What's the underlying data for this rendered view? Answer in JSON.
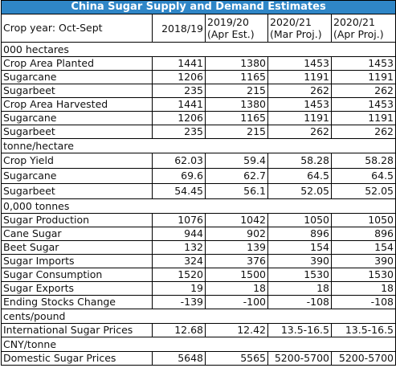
{
  "title": "China Sugar Supply and Demand Estimates",
  "header": {
    "label": "Crop year: Oct-Sept",
    "cols": [
      {
        "line1": "2018/19",
        "line2": ""
      },
      {
        "line1": "2019/20",
        "line2": "(Apr Est.)"
      },
      {
        "line1": "2020/21",
        "line2": "(Mar Proj.)"
      },
      {
        "line1": "2020/21",
        "line2": "(Apr Proj.)"
      }
    ]
  },
  "sections": [
    {
      "unit": "000 hectares",
      "rows": [
        {
          "label": "Crop Area Planted",
          "v": [
            "1441",
            "1380",
            "1453",
            "1453"
          ]
        },
        {
          "label": "Sugarcane",
          "v": [
            "1206",
            "1165",
            "1191",
            "1191"
          ]
        },
        {
          "label": "Sugarbeet",
          "v": [
            "235",
            "215",
            "262",
            "262"
          ]
        },
        {
          "label": "Crop Area Harvested",
          "v": [
            "1441",
            "1380",
            "1453",
            "1453"
          ]
        },
        {
          "label": "Sugarcane",
          "v": [
            "1206",
            "1165",
            "1191",
            "1191"
          ]
        },
        {
          "label": "Sugarbeet",
          "v": [
            "235",
            "215",
            "262",
            "262"
          ]
        }
      ]
    },
    {
      "unit": "tonne/hectare",
      "rows": [
        {
          "label": "Crop Yield",
          "v": [
            "62.03",
            "59.4",
            "58.28",
            "58.28"
          ]
        },
        {
          "label": "Sugarcane",
          "v": [
            "69.6",
            "62.7",
            "64.5",
            "64.5"
          ]
        },
        {
          "label": "Sugarbeet",
          "v": [
            "54.45",
            "56.1",
            "52.05",
            "52.05"
          ]
        }
      ]
    },
    {
      "unit": "0,000 tonnes",
      "rows": [
        {
          "label": "Sugar Production",
          "v": [
            "1076",
            "1042",
            "1050",
            "1050"
          ]
        },
        {
          "label": "Cane Sugar",
          "v": [
            "944",
            "902",
            "896",
            "896"
          ]
        },
        {
          "label": "Beet Sugar",
          "v": [
            "132",
            "139",
            "154",
            "154"
          ]
        },
        {
          "label": "Sugar Imports",
          "v": [
            "324",
            "376",
            "390",
            "390"
          ]
        },
        {
          "label": "Sugar Consumption",
          "v": [
            "1520",
            "1500",
            "1530",
            "1530"
          ]
        },
        {
          "label": "Sugar Exports",
          "v": [
            "19",
            "18",
            "18",
            "18"
          ]
        },
        {
          "label": "Ending Stocks Change",
          "v": [
            "-139",
            "-100",
            "-108",
            "-108"
          ]
        }
      ]
    },
    {
      "unit": "cents/pound",
      "rows": [
        {
          "label": "International Sugar Prices",
          "v": [
            "12.68",
            "12.42",
            "13.5-16.5",
            "13.5-16.5"
          ]
        }
      ]
    },
    {
      "unit": "CNY/tonne",
      "rows": [
        {
          "label": "Domestic Sugar Prices",
          "v": [
            "5648",
            "5565",
            "5200-5700",
            "5200-5700"
          ]
        }
      ]
    }
  ]
}
